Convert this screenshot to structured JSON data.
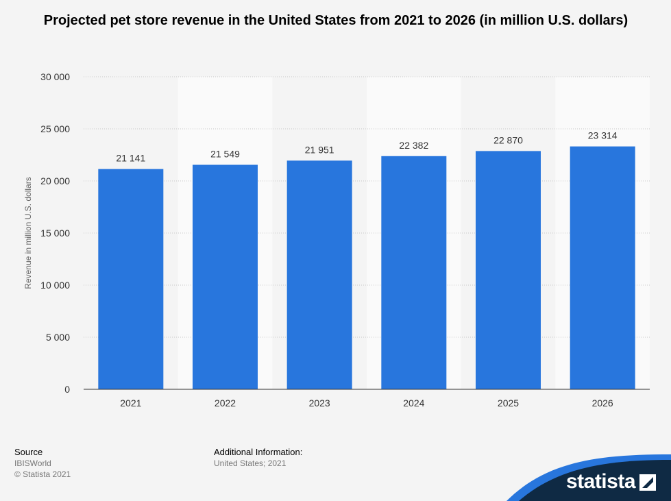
{
  "chart_data": {
    "type": "bar",
    "title": "Projected pet store revenue in the United States from 2021 to 2026 (in million U.S. dollars)",
    "xlabel": "",
    "ylabel": "Revenue in million U.S. dollars",
    "ylim": [
      0,
      30000
    ],
    "yticks": [
      0,
      5000,
      10000,
      15000,
      20000,
      25000,
      30000
    ],
    "ytick_labels": [
      "0",
      "5 000",
      "10 000",
      "15 000",
      "20 000",
      "25 000",
      "30 000"
    ],
    "categories": [
      "2021",
      "2022",
      "2023",
      "2024",
      "2025",
      "2026"
    ],
    "values": [
      21141,
      21549,
      21951,
      22382,
      22870,
      23314
    ],
    "value_labels": [
      "21 141",
      "21 549",
      "21 951",
      "22 382",
      "22 870",
      "23 314"
    ],
    "bar_color": "#2876dd",
    "grid": true
  },
  "footer": {
    "source_heading": "Source",
    "source_lines": [
      "IBISWorld",
      "© Statista 2021"
    ],
    "additional_heading": "Additional Information:",
    "additional_line": "United States; 2021"
  },
  "brand": {
    "name": "statista",
    "color": "#0f2a44",
    "accent": "#2876dd"
  }
}
